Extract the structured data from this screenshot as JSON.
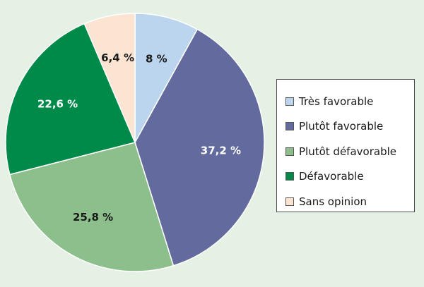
{
  "chart_data": {
    "type": "pie",
    "title": "",
    "slices": [
      {
        "label": "Très favorable",
        "value": 8,
        "display": "8 %",
        "color": "#bcd5ee",
        "text_color": "#1a1a1a"
      },
      {
        "label": "Plutôt favorable",
        "value": 37.2,
        "display": "37,2 %",
        "color": "#636b9e",
        "text_color": "#ffffff"
      },
      {
        "label": "Plutôt défavorable",
        "value": 25.8,
        "display": "25,8 %",
        "color": "#8cbf8c",
        "text_color": "#1a1a1a"
      },
      {
        "label": "Défavorable",
        "value": 22.6,
        "display": "22,6 %",
        "color": "#008a4a",
        "text_color": "#ffffff"
      },
      {
        "label": "Sans opinion",
        "value": 6.4,
        "display": "6,4 %",
        "color": "#fbe4d2",
        "text_color": "#1a1a1a"
      }
    ],
    "start_angle": "12 o'clock",
    "direction": "clockwise",
    "legend_position": "right"
  },
  "colors": {
    "background": "#e6f1e6",
    "slice_border": "#ffffff"
  }
}
